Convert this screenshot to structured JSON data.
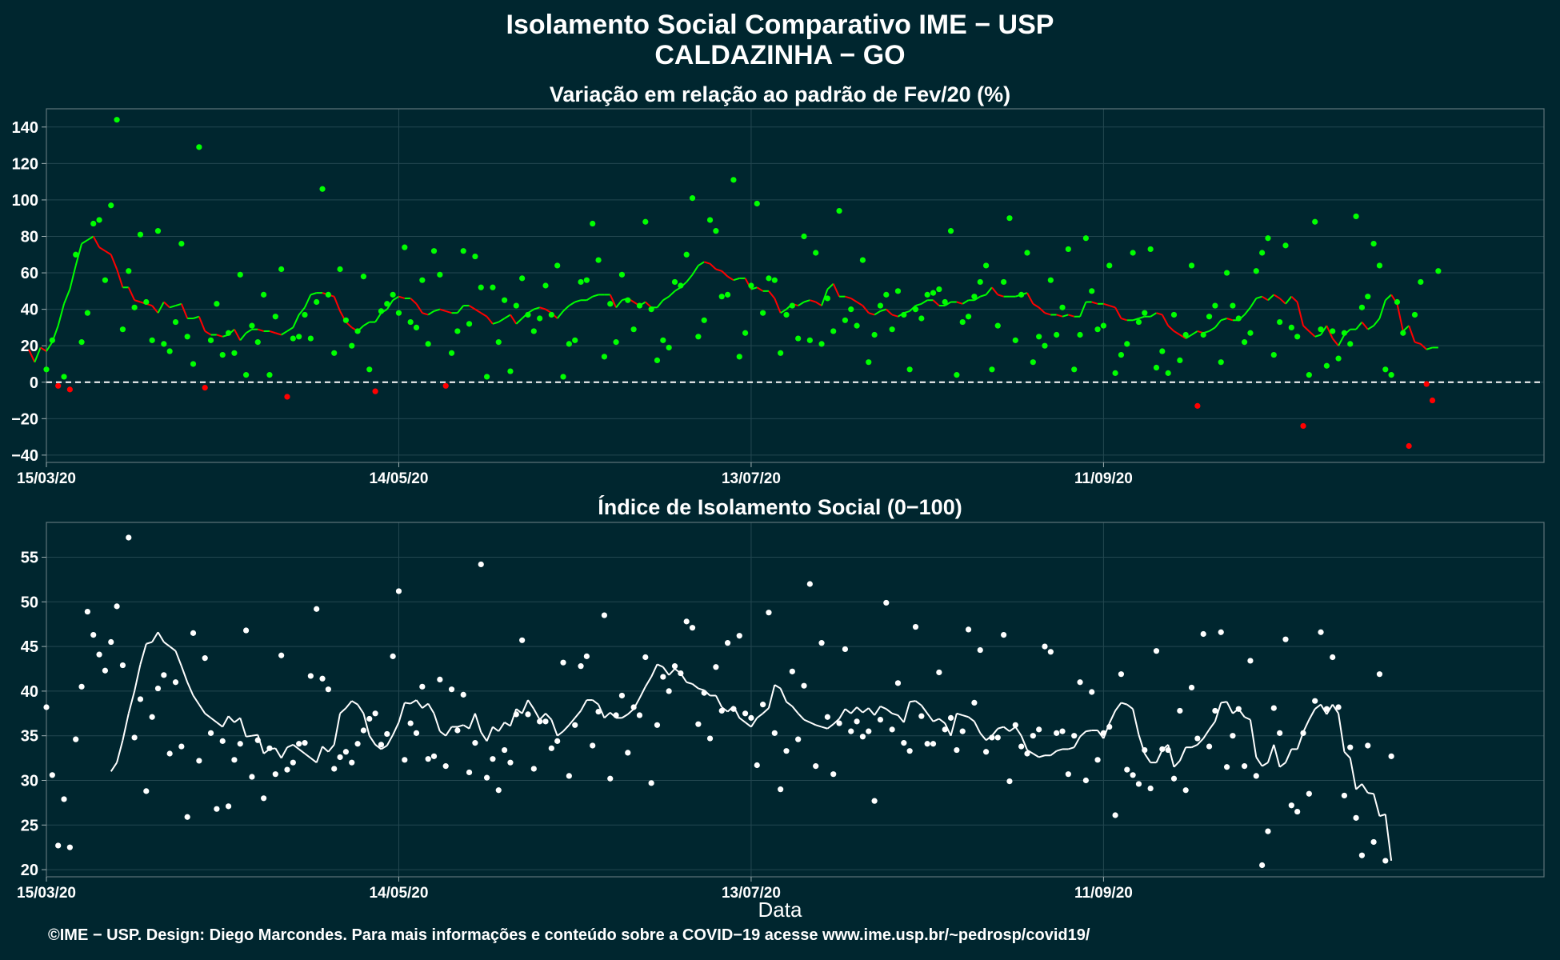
{
  "title_line1": "Isolamento Social Comparativo IME − USP",
  "title_line2": "CALDAZINHA − GO",
  "x_axis_label": "Data",
  "credit": "©IME − USP. Design: Diego Marcondes. Para mais informações e conteúdo sobre a COVID−19 acesse www.ime.usp.br/~pedrosp/covid19/",
  "colors": {
    "background": "#00262f",
    "positive": "#00ff00",
    "negative": "#ff0000",
    "index": "#ffffff",
    "grid": "#234750"
  },
  "chart_data": [
    {
      "type": "scatter",
      "title": "Variação em relação ao padrão de Fev/20 (%)",
      "x_start": "15/03/20",
      "x_end": "25/11/20",
      "x_ticks": [
        "15/03/20",
        "14/05/20",
        "13/07/20",
        "11/09/20"
      ],
      "y_ticks": [
        -40,
        -20,
        0,
        20,
        40,
        60,
        80,
        100,
        120,
        140
      ],
      "ylim": [
        -44,
        150
      ],
      "reference_line": 0,
      "series": [
        {
          "kind": "points",
          "style": "sign-colored",
          "values": [
            7,
            23,
            -2,
            3,
            -4,
            70,
            22,
            38,
            87,
            89,
            56,
            97,
            144,
            29,
            61,
            41,
            81,
            44,
            23,
            83,
            21,
            17,
            33,
            76,
            25,
            10,
            129,
            -3,
            23,
            43,
            15,
            27,
            16,
            59,
            4,
            31,
            22,
            48,
            4,
            36,
            62,
            -8,
            24,
            25,
            37,
            24,
            44,
            106,
            48,
            16,
            62,
            34,
            20,
            28,
            58,
            7,
            -5,
            39,
            43,
            48,
            38,
            74,
            33,
            30,
            56,
            21,
            72,
            59,
            -2,
            16,
            28,
            72,
            32,
            69,
            52,
            3,
            52,
            22,
            45,
            6,
            42,
            57,
            37,
            28,
            35,
            53,
            37,
            64,
            3,
            21,
            23,
            55,
            56,
            87,
            67,
            14,
            43,
            22,
            59,
            45,
            29,
            42,
            88,
            40,
            12,
            23,
            19,
            55,
            53,
            70,
            101,
            25,
            34,
            89,
            83,
            47,
            48,
            111,
            14,
            27,
            53,
            98,
            38,
            57,
            56,
            16,
            37,
            42,
            24,
            80,
            23,
            71,
            21,
            46,
            28,
            94,
            34,
            40,
            31,
            67,
            11,
            26,
            42,
            48,
            29,
            50,
            37,
            7,
            40,
            35,
            48,
            49,
            51,
            44,
            83,
            4,
            33,
            36,
            47,
            55,
            64,
            7,
            31,
            55,
            90,
            23,
            48,
            71,
            11,
            25,
            20,
            56,
            26,
            41,
            73,
            7,
            26,
            79,
            50,
            29,
            31,
            64,
            5,
            15,
            21,
            71,
            33,
            38,
            73,
            8,
            17,
            5,
            37,
            12,
            26,
            64,
            -13,
            26,
            36,
            42,
            11,
            60,
            42,
            35,
            22,
            27,
            61,
            71,
            79,
            15,
            33,
            75,
            30,
            25,
            -24,
            4,
            88,
            29,
            9,
            28,
            13,
            27,
            21,
            91,
            41,
            47,
            76,
            64,
            7,
            4,
            44,
            27,
            -35,
            37,
            55,
            -1,
            -10,
            61
          ]
        },
        {
          "kind": "moving_average",
          "style": "sign-colored",
          "values": [
            18,
            11,
            19,
            17,
            22,
            31,
            43,
            51,
            64,
            76,
            78,
            80,
            74,
            72,
            70,
            62,
            52,
            52,
            45,
            44,
            43,
            42,
            38,
            44,
            41,
            42,
            43,
            35,
            35,
            36,
            28,
            26,
            26,
            25,
            26,
            29,
            23,
            27,
            29,
            29,
            28,
            28,
            27,
            26,
            28,
            30,
            37,
            41,
            48,
            49,
            49,
            48,
            47,
            39,
            33,
            30,
            28,
            31,
            33,
            33,
            38,
            40,
            45,
            47,
            46,
            46,
            43,
            38,
            37,
            39,
            40,
            39,
            38,
            38,
            42,
            42,
            40,
            38,
            36,
            32,
            33,
            35,
            37,
            32,
            35,
            38,
            40,
            41,
            40,
            38,
            35,
            39,
            42,
            44,
            45,
            45,
            47,
            48,
            48,
            48,
            41,
            45,
            46,
            44,
            42,
            44,
            41,
            41,
            45,
            47,
            50,
            52,
            55,
            59,
            64,
            66,
            65,
            62,
            61,
            58,
            56,
            57,
            57,
            51,
            52,
            50,
            50,
            46,
            38,
            40,
            43,
            42,
            44,
            45,
            44,
            42,
            51,
            54,
            47,
            47,
            46,
            44,
            42,
            38,
            37,
            39,
            40,
            37,
            36,
            38,
            39,
            42,
            43,
            45,
            45,
            42,
            42,
            44,
            44,
            43,
            45,
            45,
            47,
            48,
            52,
            48,
            47,
            47,
            47,
            48,
            49,
            43,
            41,
            38,
            37,
            37,
            36,
            37,
            36,
            36,
            44,
            44,
            43,
            43,
            42,
            41,
            35,
            34,
            34,
            35,
            36,
            36,
            38,
            37,
            31,
            28,
            26,
            24,
            26,
            28,
            27,
            28,
            30,
            34,
            35,
            34,
            34,
            37,
            41,
            46,
            47,
            45,
            48,
            46,
            43,
            47,
            44,
            31,
            28,
            25,
            26,
            31,
            24,
            20,
            26,
            29,
            29,
            33,
            29,
            31,
            35,
            45,
            48,
            43,
            28,
            31,
            22,
            21,
            18,
            19,
            19
          ]
        }
      ]
    },
    {
      "type": "scatter",
      "title": "Índice de Isolamento Social (0−100)",
      "x_start": "15/03/20",
      "x_end": "25/11/20",
      "x_ticks": [
        "15/03/20",
        "14/05/20",
        "13/07/20",
        "11/09/20"
      ],
      "y_ticks": [
        20,
        25,
        30,
        35,
        40,
        45,
        50,
        55
      ],
      "ylim": [
        19.2,
        58.9
      ],
      "series": [
        {
          "kind": "points",
          "values": [
            38.2,
            30.6,
            22.7,
            27.9,
            22.5,
            34.6,
            40.5,
            48.9,
            46.3,
            44.1,
            42.3,
            45.5,
            49.5,
            42.9,
            57.2,
            34.8,
            39.1,
            28.8,
            37.1,
            40.3,
            41.8,
            33.0,
            41.0,
            33.8,
            25.9,
            46.5,
            32.2,
            43.7,
            35.3,
            26.8,
            34.4,
            27.1,
            32.3,
            34.1,
            46.8,
            30.4,
            34.5,
            28.0,
            33.6,
            30.7,
            44.0,
            31.2,
            32.0,
            34.1,
            34.2,
            41.7,
            49.2,
            41.4,
            40.2,
            31.3,
            32.6,
            33.2,
            32.0,
            34.1,
            35.6,
            36.9,
            37.5,
            34.0,
            35.2,
            43.9,
            51.2,
            32.3,
            36.4,
            35.3,
            40.5,
            32.4,
            32.7,
            41.3,
            31.6,
            40.2,
            35.6,
            39.6,
            30.9,
            34.2,
            54.2,
            30.3,
            32.4,
            28.9,
            33.4,
            32.0,
            37.4,
            45.7,
            37.4,
            31.3,
            36.6,
            36.6,
            33.6,
            34.4,
            43.2,
            30.5,
            36.2,
            42.8,
            43.9,
            33.9,
            37.7,
            48.5,
            30.2,
            37.3,
            39.5,
            33.1,
            38.2,
            37.3,
            43.8,
            29.7,
            36.2,
            41.6,
            40.0,
            42.8,
            42.0,
            47.8,
            47.1,
            36.3,
            39.8,
            34.7,
            42.7,
            37.8,
            45.4,
            38.0,
            46.2,
            37.5,
            37.0,
            31.7,
            38.5,
            48.8,
            35.3,
            29.0,
            33.3,
            42.2,
            34.6,
            40.6,
            52.0,
            31.6,
            45.4,
            37.1,
            30.7,
            36.4,
            44.7,
            35.5,
            36.6,
            34.9,
            35.5,
            27.7,
            36.8,
            49.9,
            35.7,
            40.9,
            34.2,
            33.3,
            47.2,
            37.2,
            34.1,
            34.1,
            42.1,
            35.7,
            37.0,
            33.4,
            35.5,
            46.9,
            38.7,
            44.6,
            33.2,
            34.8,
            34.8,
            46.3,
            29.9,
            36.2,
            33.8,
            33.0,
            35.0,
            35.7,
            45.0,
            44.4,
            35.3,
            35.5,
            30.7,
            35.0,
            41.0,
            30.0,
            39.9,
            32.3,
            35.3,
            36.0,
            26.1,
            41.9,
            31.2,
            30.6,
            29.6,
            33.4,
            29.1,
            44.5,
            33.5,
            33.4,
            30.2,
            37.8,
            28.9,
            40.4,
            34.7,
            46.4,
            33.8,
            37.8,
            46.6,
            31.5,
            35.0,
            38.0,
            31.6,
            43.4,
            30.5,
            20.5,
            24.3,
            38.1,
            35.3,
            45.8,
            27.2,
            26.5,
            35.3,
            28.5,
            38.9,
            46.6,
            38.0,
            43.8,
            38.2,
            28.3,
            33.7,
            25.8,
            21.6,
            33.9,
            23.1,
            41.9,
            21.0,
            32.7
          ]
        },
        {
          "kind": "moving_average",
          "values": [
            31.0,
            32.0,
            34.5,
            37.5,
            40.0,
            43.0,
            45.3,
            45.5,
            46.6,
            45.5,
            45.0,
            44.5,
            42.8,
            41.0,
            39.5,
            38.5,
            37.5,
            37.0,
            36.5,
            36.0,
            37.2,
            36.5,
            37.0,
            34.9,
            35.0,
            35.1,
            33.0,
            33.5,
            33.6,
            32.5,
            33.7,
            34.0,
            33.5,
            33.0,
            32.5,
            32.0,
            33.8,
            33.2,
            34.0,
            37.5,
            38.1,
            38.9,
            38.5,
            37.5,
            35.0,
            34.0,
            33.5,
            33.9,
            35.1,
            36.5,
            38.7,
            38.6,
            39.0,
            38.1,
            38.6,
            37.5,
            35.5,
            35.0,
            36.0,
            36.0,
            36.2,
            35.8,
            37.5,
            35.4,
            34.4,
            36.0,
            35.5,
            36.5,
            36.1,
            38.0,
            37.5,
            39.0,
            38.0,
            36.8,
            37.5,
            36.8,
            35.0,
            35.5,
            36.2,
            37.0,
            37.8,
            39.0,
            39.0,
            38.5,
            37.0,
            37.6,
            37.0,
            37.0,
            37.4,
            38.0,
            39.2,
            40.5,
            41.6,
            43.0,
            42.7,
            41.8,
            42.5,
            42.0,
            41.0,
            40.8,
            40.3,
            40.1,
            39.5,
            39.5,
            38.2,
            37.7,
            38.3,
            37.0,
            36.5,
            36.0,
            37.0,
            37.5,
            38.1,
            40.7,
            40.3,
            38.8,
            38.3,
            37.5,
            36.8,
            36.5,
            36.2,
            36.0,
            35.8,
            36.3,
            36.9,
            38.0,
            37.5,
            38.2,
            37.6,
            38.1,
            37.3,
            38.3,
            38.0,
            37.5,
            37.3,
            36.5,
            38.8,
            38.9,
            38.4,
            37.5,
            36.6,
            36.9,
            36.4,
            35.0,
            37.5,
            37.3,
            37.1,
            36.6,
            35.3,
            34.5,
            35.0,
            35.8,
            36.0,
            35.5,
            36.0,
            35.0,
            33.4,
            33.0,
            32.6,
            32.8,
            32.8,
            33.3,
            33.5,
            33.5,
            33.7,
            34.9,
            35.5,
            35.6,
            35.6,
            34.7,
            36.4,
            37.8,
            38.7,
            38.5,
            38.0,
            35.1,
            33.0,
            32.0,
            32.0,
            33.4,
            34.0,
            31.5,
            32.2,
            33.7,
            33.7,
            34.0,
            34.7,
            35.7,
            36.6,
            38.7,
            38.8,
            37.5,
            38.0,
            37.1,
            36.8,
            32.6,
            31.6,
            32.0,
            34.0,
            31.5,
            32.0,
            33.5,
            33.5,
            35.4,
            36.8,
            38.0,
            38.5,
            37.4,
            38.5,
            37.5,
            33.2,
            32.5,
            29.0,
            29.6,
            28.6,
            28.5,
            26.0,
            26.2,
            21.0
          ]
        }
      ]
    }
  ]
}
